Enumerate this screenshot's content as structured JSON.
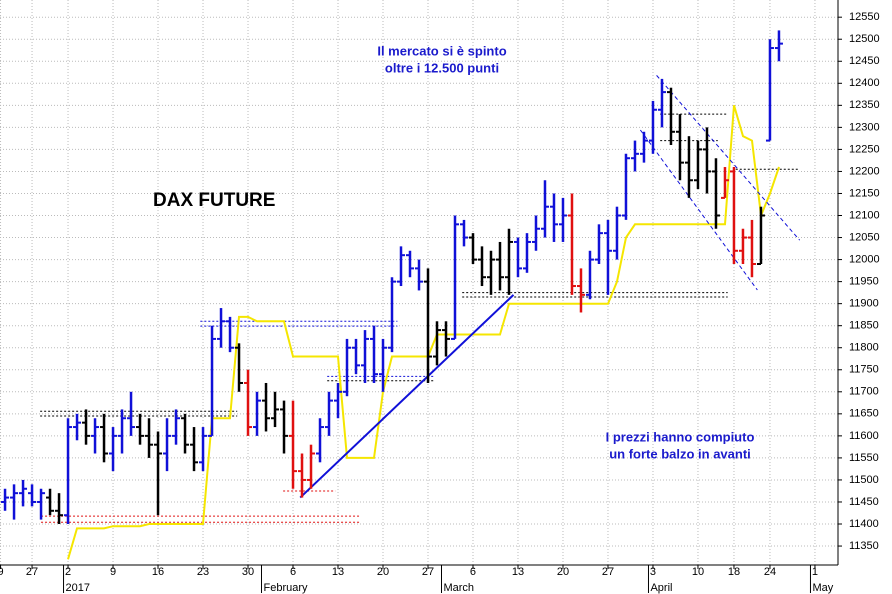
{
  "chart_data": {
    "type": "ohlc",
    "title": "DAX FUTURE",
    "annotations": [
      {
        "lines": [
          "Il mercato si è spinto",
          "oltre i 12.500 punti"
        ]
      },
      {
        "lines": [
          "I prezzi hanno compiuto",
          "un forte balzo in avanti"
        ]
      }
    ],
    "xlim": [
      -7.56,
      85.56
    ],
    "ylim": [
      11307,
      12589
    ],
    "yticks": [
      11350,
      11400,
      11450,
      11500,
      11550,
      11600,
      11650,
      11700,
      11750,
      11800,
      11850,
      11900,
      11950,
      12000,
      12050,
      12100,
      12150,
      12200,
      12250,
      12300,
      12350,
      12400,
      12450,
      12500,
      12550
    ],
    "xticks": [
      {
        "value": -7.5,
        "label": "9"
      },
      {
        "value": -4,
        "label": "27"
      },
      {
        "value": 0,
        "label": "2"
      },
      {
        "value": 5,
        "label": "9"
      },
      {
        "value": 10,
        "label": "16"
      },
      {
        "value": 15,
        "label": "23"
      },
      {
        "value": 20,
        "label": "30"
      },
      {
        "value": 25,
        "label": "6"
      },
      {
        "value": 30,
        "label": "13"
      },
      {
        "value": 35,
        "label": "20"
      },
      {
        "value": 40,
        "label": "27"
      },
      {
        "value": 45,
        "label": "6"
      },
      {
        "value": 50,
        "label": "13"
      },
      {
        "value": 55,
        "label": "20"
      },
      {
        "value": 60,
        "label": "27"
      },
      {
        "value": 65,
        "label": "3"
      },
      {
        "value": 70,
        "label": "10"
      },
      {
        "value": 74,
        "label": "18"
      },
      {
        "value": 78,
        "label": "24"
      },
      {
        "value": 83,
        "label": "1"
      }
    ],
    "months": [
      {
        "value": 0,
        "label": "2017"
      },
      {
        "value": 22,
        "label": "February"
      },
      {
        "value": 42,
        "label": "March"
      },
      {
        "value": 65,
        "label": "April"
      },
      {
        "value": 83,
        "label": "May"
      }
    ],
    "grid": true,
    "x": [
      -7,
      -6,
      -5,
      -4,
      -3,
      -2,
      -1,
      0,
      1,
      2,
      3,
      4,
      5,
      6,
      7,
      8,
      9,
      10,
      11,
      12,
      13,
      14,
      15,
      16,
      17,
      18,
      19,
      20,
      21,
      22,
      23,
      24,
      25,
      26,
      27,
      28,
      29,
      30,
      31,
      32,
      33,
      34,
      35,
      36,
      37,
      38,
      39,
      40,
      41,
      42,
      43,
      44,
      45,
      46,
      47,
      48,
      49,
      50,
      51,
      52,
      53,
      54,
      55,
      56,
      57,
      58,
      59,
      60,
      61,
      62,
      63,
      64,
      65,
      66,
      67,
      68,
      69,
      70,
      71,
      72,
      73,
      74,
      75,
      76,
      77,
      78,
      79
    ],
    "open": [
      11450,
      11460,
      11470,
      11470,
      11450,
      11460,
      11430,
      11420,
      11620,
      11630,
      11600,
      11620,
      11560,
      11600,
      11640,
      11620,
      11600,
      11580,
      11560,
      11600,
      11640,
      11580,
      11540,
      11600,
      11820,
      11860,
      11800,
      11720,
      11620,
      11680,
      11640,
      11660,
      11600,
      11520,
      11500,
      11560,
      11620,
      11680,
      11700,
      11800,
      11760,
      11820,
      11740,
      11800,
      11950,
      12010,
      11980,
      11950,
      11780,
      11840,
      11820,
      12080,
      12050,
      12000,
      11960,
      12000,
      11960,
      12040,
      11980,
      12040,
      12070,
      12120,
      12080,
      12100,
      11940,
      11920,
      12000,
      12060,
      12020,
      12100,
      12230,
      12240,
      12270,
      12340,
      12380,
      12290,
      12220,
      12180,
      12250,
      12200,
      12140,
      12200,
      12020,
      12050,
      11990,
      12270,
      12480
    ],
    "high": [
      11480,
      11490,
      11500,
      11490,
      11480,
      11480,
      11470,
      11640,
      11650,
      11660,
      11640,
      11650,
      11620,
      11660,
      11700,
      11650,
      11640,
      11610,
      11640,
      11660,
      11650,
      11620,
      11620,
      11850,
      11890,
      11870,
      11810,
      11750,
      11700,
      11720,
      11700,
      11680,
      11680,
      11560,
      11580,
      11640,
      11700,
      11720,
      11820,
      11820,
      11840,
      11850,
      11820,
      11960,
      12030,
      12020,
      12000,
      11980,
      11860,
      11860,
      12100,
      12090,
      12060,
      12030,
      12020,
      12040,
      12070,
      12050,
      12060,
      12100,
      12180,
      12150,
      12140,
      12150,
      11980,
      12020,
      12080,
      12090,
      12120,
      12240,
      12270,
      12290,
      12360,
      12410,
      12390,
      12330,
      12280,
      12270,
      12300,
      12230,
      12210,
      12210,
      12070,
      12090,
      12120,
      12500,
      12520
    ],
    "low": [
      11430,
      11410,
      11440,
      11440,
      11410,
      11420,
      11400,
      11400,
      11590,
      11580,
      11560,
      11540,
      11520,
      11560,
      11600,
      11580,
      11550,
      11420,
      11520,
      11580,
      11560,
      11520,
      11520,
      11600,
      11800,
      11790,
      11700,
      11600,
      11600,
      11610,
      11620,
      11560,
      11480,
      11460,
      11480,
      11540,
      11600,
      11640,
      11690,
      11740,
      11720,
      11720,
      11700,
      11790,
      11940,
      11960,
      11930,
      11720,
      11760,
      11780,
      11820,
      12030,
      11990,
      11940,
      11920,
      11930,
      11920,
      11960,
      11970,
      12020,
      12050,
      12040,
      12040,
      11920,
      11880,
      11910,
      11990,
      11920,
      12000,
      12090,
      12200,
      12220,
      12240,
      12300,
      12260,
      12180,
      12140,
      12160,
      12150,
      12070,
      12140,
      11990,
      11990,
      11960,
      11990,
      12270,
      12450
    ],
    "close": [
      11460,
      11470,
      11480,
      11450,
      11470,
      11430,
      11420,
      11620,
      11630,
      11600,
      11620,
      11560,
      11600,
      11640,
      11620,
      11600,
      11580,
      11560,
      11600,
      11640,
      11580,
      11540,
      11600,
      11820,
      11860,
      11800,
      11720,
      11620,
      11680,
      11640,
      11660,
      11600,
      11520,
      11500,
      11560,
      11620,
      11680,
      11700,
      11800,
      11760,
      11820,
      11740,
      11800,
      11950,
      12010,
      11980,
      11950,
      11780,
      11840,
      11820,
      12080,
      12050,
      12000,
      11960,
      12000,
      11960,
      12040,
      11980,
      12040,
      12070,
      12120,
      12080,
      12100,
      11940,
      11920,
      12000,
      12060,
      12020,
      12100,
      12230,
      12240,
      12270,
      12340,
      12380,
      12290,
      12220,
      12180,
      12250,
      12200,
      12100,
      12180,
      12020,
      12050,
      11990,
      12100,
      12480,
      12490
    ],
    "colors": [
      "#1010d8",
      "#1010d8",
      "#1010d8",
      "#1010d8",
      "#1010d8",
      "#000000",
      "#000000",
      "#1010d8",
      "#1010d8",
      "#000000",
      "#1010d8",
      "#000000",
      "#1010d8",
      "#1010d8",
      "#1010d8",
      "#000000",
      "#000000",
      "#000000",
      "#1010d8",
      "#1010d8",
      "#000000",
      "#000000",
      "#1010d8",
      "#1010d8",
      "#1010d8",
      "#1010d8",
      "#000000",
      "#e01010",
      "#1010d8",
      "#000000",
      "#000000",
      "#000000",
      "#e01010",
      "#e01010",
      "#e01010",
      "#1010d8",
      "#1010d8",
      "#1010d8",
      "#1010d8",
      "#1010d8",
      "#1010d8",
      "#1010d8",
      "#1010d8",
      "#1010d8",
      "#1010d8",
      "#1010d8",
      "#1010d8",
      "#000000",
      "#000000",
      "#000000",
      "#1010d8",
      "#1010d8",
      "#000000",
      "#000000",
      "#000000",
      "#000000",
      "#000000",
      "#1010d8",
      "#1010d8",
      "#1010d8",
      "#1010d8",
      "#1010d8",
      "#1010d8",
      "#e01010",
      "#e01010",
      "#1010d8",
      "#1010d8",
      "#1010d8",
      "#1010d8",
      "#1010d8",
      "#1010d8",
      "#1010d8",
      "#1010d8",
      "#1010d8",
      "#000000",
      "#000000",
      "#000000",
      "#000000",
      "#000000",
      "#000000",
      "#e01010",
      "#e01010",
      "#e01010",
      "#e01010",
      "#000000",
      "#1010d8",
      "#1010d8"
    ],
    "signal_line": {
      "color": "#f5e600",
      "values": [
        null,
        null,
        null,
        null,
        null,
        null,
        null,
        11320,
        11390,
        11390,
        11390,
        11390,
        11395,
        11395,
        11395,
        11395,
        11400,
        11400,
        11400,
        11400,
        11400,
        11400,
        11400,
        11640,
        11640,
        11640,
        11870,
        11870,
        11860,
        11860,
        11860,
        11860,
        11780,
        11780,
        11780,
        11780,
        11780,
        11780,
        11550,
        11550,
        11550,
        11550,
        11700,
        11780,
        11780,
        11780,
        11780,
        11780,
        11830,
        11830,
        11830,
        11830,
        11830,
        11830,
        11830,
        11830,
        11900,
        11900,
        11900,
        11900,
        11900,
        11900,
        11900,
        11900,
        11900,
        11900,
        11900,
        11900,
        11950,
        12050,
        12080,
        12080,
        12080,
        12080,
        12080,
        12080,
        12080,
        12080,
        12080,
        12080,
        12080,
        12350,
        12280,
        12270,
        12100,
        12150,
        12210
      ]
    },
    "trend_lines": [
      {
        "x": [
          25.8,
          49.5
        ],
        "y": [
          11460,
          11920
        ],
        "color": "#1010d8",
        "dash": false
      },
      {
        "x": [
          65.4,
          81.3
        ],
        "y": [
          12418,
          12044
        ],
        "color": "#1010d8",
        "dash": true
      },
      {
        "x": [
          63.6,
          76.6
        ],
        "y": [
          12294,
          11931
        ],
        "color": "#1010d8",
        "dash": true
      }
    ],
    "levels": [
      {
        "x": [
          -3.1,
          18.8
        ],
        "y": 11656,
        "color": "#000000"
      },
      {
        "x": [
          -3.1,
          18.8
        ],
        "y": 11645,
        "color": "#000000"
      },
      {
        "x": [
          -3,
          32.4
        ],
        "y": 11418,
        "color": "#e01010"
      },
      {
        "x": [
          -3,
          32.4
        ],
        "y": 11404,
        "color": "#e01010"
      },
      {
        "x": [
          14.7,
          36.6
        ],
        "y": 11860,
        "color": "#1010d8"
      },
      {
        "x": [
          14.7,
          36.6
        ],
        "y": 11849,
        "color": "#1010d8"
      },
      {
        "x": [
          28.8,
          40.8
        ],
        "y": 11735,
        "color": "#1010d8"
      },
      {
        "x": [
          28.8,
          40.8
        ],
        "y": 11725,
        "color": "#000000"
      },
      {
        "x": [
          23.9,
          29.7
        ],
        "y": 11475,
        "color": "#e01010"
      },
      {
        "x": [
          43.8,
          73.3
        ],
        "y": 11925,
        "color": "#000000"
      },
      {
        "x": [
          43.8,
          73.3
        ],
        "y": 11915,
        "color": "#000000"
      },
      {
        "x": [
          65.8,
          73.3
        ],
        "y": 12330,
        "color": "#000000"
      },
      {
        "x": [
          65.8,
          72.2
        ],
        "y": 12270,
        "color": "#000000"
      },
      {
        "x": [
          74.2,
          81.3
        ],
        "y": 12205,
        "color": "#000000"
      }
    ]
  }
}
